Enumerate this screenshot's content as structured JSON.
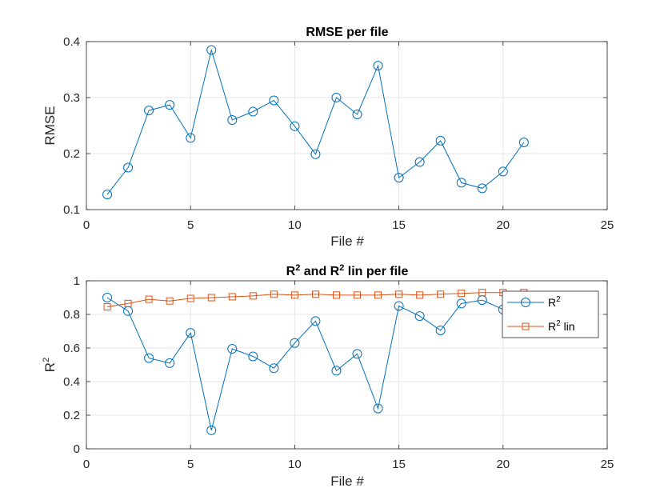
{
  "chart_data": [
    {
      "type": "line",
      "title": "RMSE per file",
      "xlabel": "File #",
      "ylabel": "RMSE",
      "xlim": [
        0,
        25
      ],
      "ylim": [
        0.1,
        0.4
      ],
      "xticks": [
        "0",
        "5",
        "10",
        "15",
        "20",
        "25"
      ],
      "yticks": [
        "0.1",
        "0.2",
        "0.3",
        "0.4"
      ],
      "grid": true,
      "x": [
        1,
        2,
        3,
        4,
        5,
        6,
        7,
        8,
        9,
        10,
        11,
        12,
        13,
        14,
        15,
        16,
        17,
        18,
        19,
        20,
        21
      ],
      "series": [
        {
          "marker": "circle",
          "color": "#0072bd",
          "values": [
            0.127,
            0.175,
            0.277,
            0.287,
            0.228,
            0.385,
            0.26,
            0.275,
            0.295,
            0.249,
            0.199,
            0.3,
            0.27,
            0.357,
            0.157,
            0.185,
            0.223,
            0.148,
            0.138,
            0.168,
            0.22
          ]
        }
      ]
    },
    {
      "type": "line",
      "title_main": "R",
      "title_sup1": "2",
      "title_mid": " and R",
      "title_sup2": "2",
      "title_end": " lin per file",
      "xlabel": "File #",
      "ylabel_main": "R",
      "ylabel_sup": "2",
      "xlim": [
        0,
        25
      ],
      "ylim": [
        0,
        1
      ],
      "xticks": [
        "0",
        "5",
        "10",
        "15",
        "20",
        "25"
      ],
      "yticks": [
        "0",
        "0.2",
        "0.4",
        "0.6",
        "0.8",
        "1"
      ],
      "grid": true,
      "legend_position": "top-right",
      "x": [
        1,
        2,
        3,
        4,
        5,
        6,
        7,
        8,
        9,
        10,
        11,
        12,
        13,
        14,
        15,
        16,
        17,
        18,
        19,
        20,
        21
      ],
      "series": [
        {
          "name_main": "R",
          "name_sup": "2",
          "marker": "circle",
          "color": "#0072bd",
          "values": [
            0.9,
            0.82,
            0.54,
            0.51,
            0.69,
            0.11,
            0.595,
            0.55,
            0.48,
            0.63,
            0.76,
            0.465,
            0.565,
            0.24,
            0.85,
            0.79,
            0.705,
            0.865,
            0.885,
            0.83,
            0.85
          ]
        },
        {
          "name_main": "R",
          "name_sup": "2",
          "name_end": " lin",
          "marker": "square",
          "color": "#d95319",
          "values": [
            0.845,
            0.865,
            0.89,
            0.88,
            0.895,
            0.9,
            0.905,
            0.91,
            0.92,
            0.915,
            0.92,
            0.915,
            0.915,
            0.915,
            0.92,
            0.915,
            0.92,
            0.925,
            0.93,
            0.93,
            0.93
          ]
        }
      ]
    }
  ]
}
